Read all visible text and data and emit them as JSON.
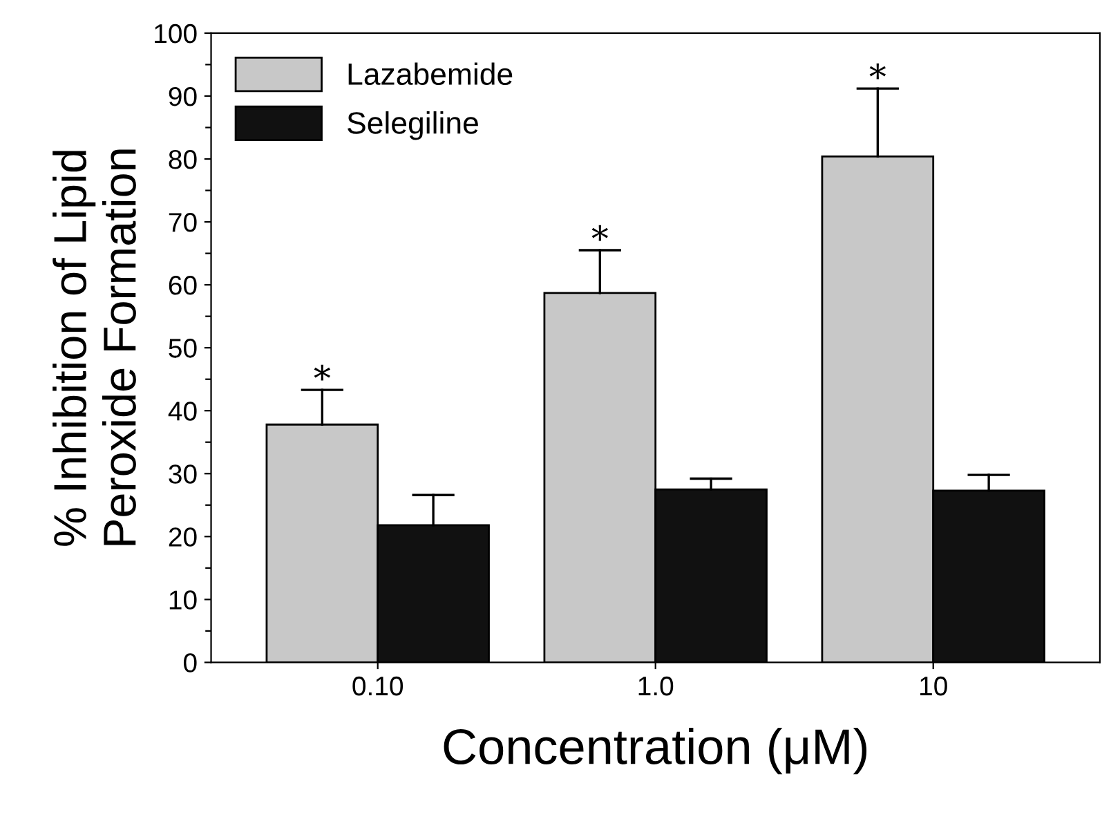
{
  "chart_data": {
    "type": "bar",
    "xlabel": "Concentration (μM)",
    "ylabel": "% Inhibition of Lipid\nPeroxide Formation",
    "categories": [
      "0.10",
      "1.0",
      "10"
    ],
    "series": [
      {
        "name": "Lazabemide",
        "color": "#c8c8c8",
        "values": [
          37.8,
          58.7,
          80.4
        ],
        "errors": [
          [
            37.8,
            43.3
          ],
          [
            58.7,
            65.5
          ],
          [
            80.4,
            91.2
          ]
        ]
      },
      {
        "name": "Selegiline",
        "color": "#111111",
        "values": [
          21.8,
          27.5,
          27.3
        ],
        "errors": [
          [
            21.8,
            26.6
          ],
          [
            27.5,
            29.2
          ],
          [
            27.3,
            29.8
          ]
        ]
      }
    ],
    "ylim": [
      0,
      100
    ],
    "yticks": [
      0,
      {
        "value": 5,
        "label": null
      },
      10,
      {
        "value": 15,
        "label": null
      },
      20,
      {
        "value": 25,
        "label": null
      },
      30,
      {
        "value": 35,
        "label": null
      },
      40,
      {
        "value": 45,
        "label": null
      },
      50,
      {
        "value": 55,
        "label": null
      },
      60,
      {
        "value": 65,
        "label": null
      },
      70,
      {
        "value": 75,
        "label": null
      },
      80,
      {
        "value": 85,
        "label": null
      },
      90,
      {
        "value": 95,
        "label": null
      },
      100
    ],
    "annotations": [
      "*",
      "*",
      "*"
    ],
    "legend": "top left",
    "grid": false
  }
}
